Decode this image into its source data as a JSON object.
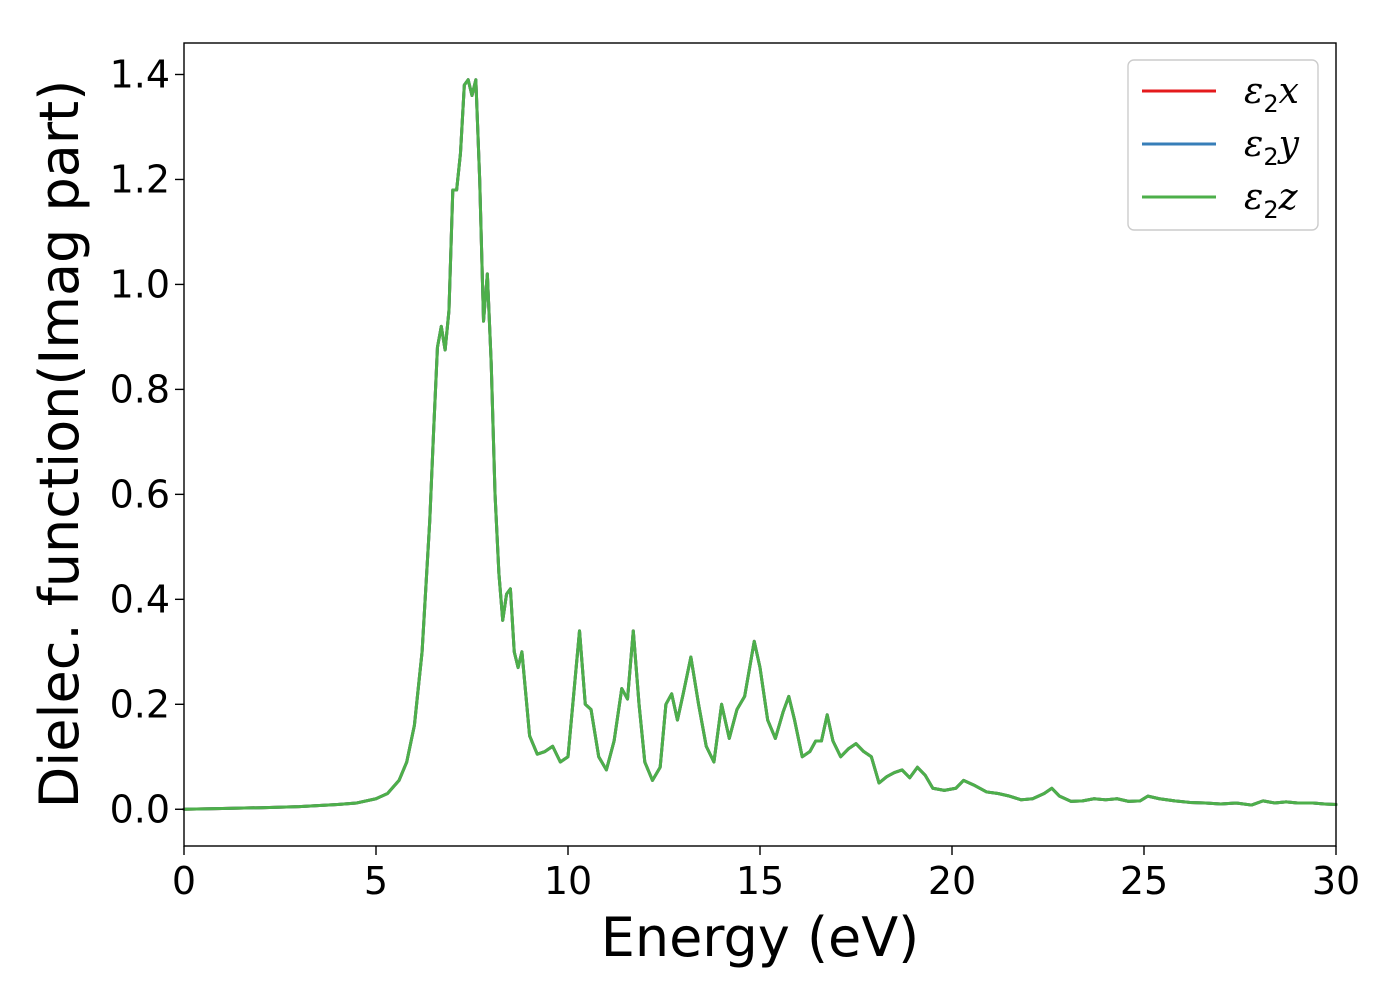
{
  "chart_data": {
    "type": "line",
    "title": "",
    "xlabel": "Energy (eV)",
    "ylabel": "Dielec. function(Imag part)",
    "xlim": [
      0,
      30
    ],
    "ylim": [
      -0.07,
      1.46
    ],
    "xticks": [
      0,
      5,
      10,
      15,
      20,
      25,
      30
    ],
    "xtick_labels": [
      "0",
      "5",
      "10",
      "15",
      "20",
      "25",
      "30"
    ],
    "yticks": [
      0.0,
      0.2,
      0.4,
      0.6,
      0.8,
      1.0,
      1.2,
      1.4
    ],
    "ytick_labels": [
      "0.0",
      "0.2",
      "0.4",
      "0.6",
      "0.8",
      "1.0",
      "1.2",
      "1.4"
    ],
    "grid": false,
    "legend_position": "top-right",
    "x": [
      0,
      1,
      2,
      3,
      4,
      4.5,
      5,
      5.3,
      5.6,
      5.8,
      6.0,
      6.2,
      6.4,
      6.5,
      6.6,
      6.7,
      6.8,
      6.9,
      7.0,
      7.1,
      7.2,
      7.3,
      7.4,
      7.5,
      7.6,
      7.7,
      7.8,
      7.9,
      8.0,
      8.1,
      8.2,
      8.3,
      8.4,
      8.5,
      8.6,
      8.7,
      8.8,
      8.9,
      9.0,
      9.2,
      9.4,
      9.6,
      9.8,
      10.0,
      10.15,
      10.3,
      10.45,
      10.6,
      10.8,
      11.0,
      11.2,
      11.4,
      11.55,
      11.7,
      11.85,
      12.0,
      12.2,
      12.4,
      12.55,
      12.7,
      12.85,
      13.0,
      13.2,
      13.4,
      13.6,
      13.8,
      14.0,
      14.2,
      14.4,
      14.6,
      14.85,
      15.0,
      15.2,
      15.4,
      15.6,
      15.75,
      15.9,
      16.1,
      16.3,
      16.45,
      16.6,
      16.75,
      16.9,
      17.1,
      17.3,
      17.5,
      17.7,
      17.9,
      18.1,
      18.3,
      18.5,
      18.7,
      18.9,
      19.1,
      19.3,
      19.5,
      19.8,
      20.1,
      20.3,
      20.6,
      20.9,
      21.2,
      21.5,
      21.8,
      22.1,
      22.4,
      22.6,
      22.8,
      23.1,
      23.4,
      23.7,
      24.0,
      24.3,
      24.6,
      24.9,
      25.1,
      25.4,
      25.8,
      26.2,
      26.6,
      27.0,
      27.4,
      27.8,
      28.1,
      28.4,
      28.7,
      29.0,
      29.4,
      29.7,
      30.0
    ],
    "series": [
      {
        "name": "ε₂x",
        "label_main": "ε",
        "label_sub": "2",
        "label_tail": "x",
        "color": "#e41a1c",
        "y": [
          0.0,
          0.0015,
          0.003,
          0.005,
          0.009,
          0.012,
          0.02,
          0.03,
          0.055,
          0.09,
          0.16,
          0.3,
          0.55,
          0.72,
          0.88,
          0.92,
          0.875,
          0.95,
          1.18,
          1.18,
          1.25,
          1.38,
          1.39,
          1.36,
          1.39,
          1.2,
          0.93,
          1.02,
          0.85,
          0.6,
          0.45,
          0.36,
          0.41,
          0.42,
          0.3,
          0.27,
          0.3,
          0.22,
          0.14,
          0.105,
          0.11,
          0.12,
          0.09,
          0.1,
          0.22,
          0.34,
          0.2,
          0.19,
          0.1,
          0.075,
          0.13,
          0.23,
          0.21,
          0.34,
          0.2,
          0.09,
          0.055,
          0.08,
          0.2,
          0.22,
          0.17,
          0.22,
          0.29,
          0.2,
          0.12,
          0.09,
          0.2,
          0.135,
          0.19,
          0.215,
          0.32,
          0.27,
          0.17,
          0.135,
          0.185,
          0.215,
          0.17,
          0.1,
          0.11,
          0.13,
          0.13,
          0.18,
          0.13,
          0.1,
          0.115,
          0.125,
          0.11,
          0.1,
          0.05,
          0.062,
          0.07,
          0.075,
          0.06,
          0.08,
          0.065,
          0.04,
          0.036,
          0.04,
          0.055,
          0.045,
          0.033,
          0.03,
          0.025,
          0.018,
          0.02,
          0.03,
          0.04,
          0.025,
          0.015,
          0.016,
          0.02,
          0.018,
          0.02,
          0.015,
          0.016,
          0.025,
          0.02,
          0.016,
          0.013,
          0.012,
          0.01,
          0.012,
          0.008,
          0.016,
          0.012,
          0.014,
          0.012,
          0.012,
          0.01,
          0.009
        ]
      },
      {
        "name": "ε₂y",
        "label_main": "ε",
        "label_sub": "2",
        "label_tail": "y",
        "color": "#377eb8",
        "y": [
          0.0,
          0.0015,
          0.003,
          0.005,
          0.009,
          0.012,
          0.02,
          0.03,
          0.055,
          0.09,
          0.16,
          0.3,
          0.55,
          0.72,
          0.88,
          0.92,
          0.875,
          0.95,
          1.18,
          1.18,
          1.25,
          1.38,
          1.39,
          1.36,
          1.39,
          1.2,
          0.93,
          1.02,
          0.85,
          0.6,
          0.45,
          0.36,
          0.41,
          0.42,
          0.3,
          0.27,
          0.3,
          0.22,
          0.14,
          0.105,
          0.11,
          0.12,
          0.09,
          0.1,
          0.22,
          0.34,
          0.2,
          0.19,
          0.1,
          0.075,
          0.13,
          0.23,
          0.21,
          0.34,
          0.2,
          0.09,
          0.055,
          0.08,
          0.2,
          0.22,
          0.17,
          0.22,
          0.29,
          0.2,
          0.12,
          0.09,
          0.2,
          0.135,
          0.19,
          0.215,
          0.32,
          0.27,
          0.17,
          0.135,
          0.185,
          0.215,
          0.17,
          0.1,
          0.11,
          0.13,
          0.13,
          0.18,
          0.13,
          0.1,
          0.115,
          0.125,
          0.11,
          0.1,
          0.05,
          0.062,
          0.07,
          0.075,
          0.06,
          0.08,
          0.065,
          0.04,
          0.036,
          0.04,
          0.055,
          0.045,
          0.033,
          0.03,
          0.025,
          0.018,
          0.02,
          0.03,
          0.04,
          0.025,
          0.015,
          0.016,
          0.02,
          0.018,
          0.02,
          0.015,
          0.016,
          0.025,
          0.02,
          0.016,
          0.013,
          0.012,
          0.01,
          0.012,
          0.008,
          0.016,
          0.012,
          0.014,
          0.012,
          0.012,
          0.01,
          0.009
        ]
      },
      {
        "name": "ε₂z",
        "label_main": "ε",
        "label_sub": "2",
        "label_tail": "z",
        "color": "#4daf4a",
        "y": [
          0.0,
          0.0015,
          0.003,
          0.005,
          0.009,
          0.012,
          0.02,
          0.03,
          0.055,
          0.09,
          0.16,
          0.3,
          0.55,
          0.72,
          0.88,
          0.92,
          0.875,
          0.95,
          1.18,
          1.18,
          1.25,
          1.38,
          1.39,
          1.36,
          1.39,
          1.2,
          0.93,
          1.02,
          0.85,
          0.6,
          0.45,
          0.36,
          0.41,
          0.42,
          0.3,
          0.27,
          0.3,
          0.22,
          0.14,
          0.105,
          0.11,
          0.12,
          0.09,
          0.1,
          0.22,
          0.34,
          0.2,
          0.19,
          0.1,
          0.075,
          0.13,
          0.23,
          0.21,
          0.34,
          0.2,
          0.09,
          0.055,
          0.08,
          0.2,
          0.22,
          0.17,
          0.22,
          0.29,
          0.2,
          0.12,
          0.09,
          0.2,
          0.135,
          0.19,
          0.215,
          0.32,
          0.27,
          0.17,
          0.135,
          0.185,
          0.215,
          0.17,
          0.1,
          0.11,
          0.13,
          0.13,
          0.18,
          0.13,
          0.1,
          0.115,
          0.125,
          0.11,
          0.1,
          0.05,
          0.062,
          0.07,
          0.075,
          0.06,
          0.08,
          0.065,
          0.04,
          0.036,
          0.04,
          0.055,
          0.045,
          0.033,
          0.03,
          0.025,
          0.018,
          0.02,
          0.03,
          0.04,
          0.025,
          0.015,
          0.016,
          0.02,
          0.018,
          0.02,
          0.015,
          0.016,
          0.025,
          0.02,
          0.016,
          0.013,
          0.012,
          0.01,
          0.012,
          0.008,
          0.016,
          0.012,
          0.014,
          0.012,
          0.012,
          0.01,
          0.009
        ]
      }
    ]
  }
}
